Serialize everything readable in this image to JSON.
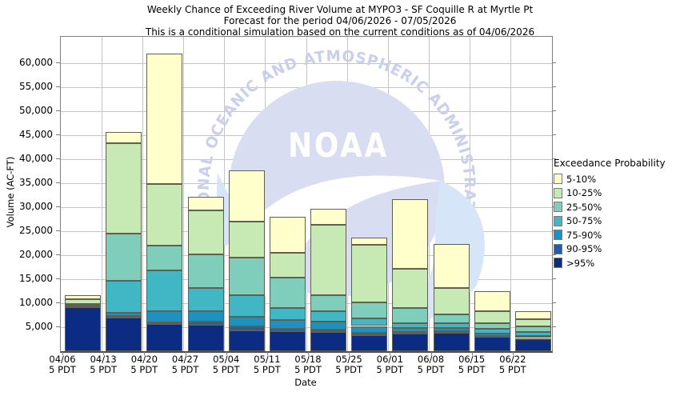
{
  "title": {
    "line1": "Weekly Chance of Exceeding River Volume at MYPO3 - SF Coquille R at Myrtle Pt",
    "line2": "Forecast for the period 04/06/2026 - 07/05/2026",
    "line3": "This is a conditional simulation based on the current conditions as of 04/06/2026"
  },
  "axes": {
    "y_label": "Volume (AC-FT)",
    "x_label": "Date",
    "y_ticks": [
      5000,
      10000,
      15000,
      20000,
      25000,
      30000,
      35000,
      40000,
      45000,
      50000,
      55000,
      60000
    ],
    "y_max": 65500,
    "x_tick_sublabel": "5 PDT"
  },
  "legend": {
    "title": "Exceedance Probability",
    "items": [
      {
        "label": "5-10%",
        "color": "#ffffcc"
      },
      {
        "label": "10-25%",
        "color": "#c7e9b4"
      },
      {
        "label": "25-50%",
        "color": "#7fcdbb"
      },
      {
        "label": "50-75%",
        "color": "#41b6c4"
      },
      {
        "label": "75-90%",
        "color": "#1d91c0"
      },
      {
        "label": "90-95%",
        "color": "#225ea8"
      },
      {
        "label": ">95%",
        "color": "#0c2c84"
      }
    ]
  },
  "watermark": {
    "arc_text": "NATIONAL OCEANIC AND ATMOSPHERIC ADMINISTRATION",
    "wordmark": "NOAA"
  },
  "chart_data": {
    "type": "bar",
    "stacked": true,
    "title": "Weekly Chance of Exceeding River Volume at MYPO3 - SF Coquille R at Myrtle Pt",
    "subtitle": "Forecast for the period 04/06/2026 - 07/05/2026",
    "note": "This is a conditional simulation based on the current conditions as of 04/06/2026",
    "xlabel": "Date",
    "ylabel": "Volume (AC-FT)",
    "ylim": [
      0,
      65500
    ],
    "grid": true,
    "legend_position": "right",
    "categories": [
      "04/06",
      "04/13",
      "04/20",
      "04/27",
      "05/04",
      "05/11",
      "05/18",
      "05/25",
      "06/01",
      "06/08",
      "06/15",
      "06/22"
    ],
    "category_sublabel": "5 PDT",
    "series": [
      {
        "name": ">95%",
        "color": "#0c2c84",
        "values": [
          9200,
          7000,
          5700,
          5450,
          4400,
          4100,
          3950,
          3400,
          3700,
          3800,
          3000,
          2600
        ]
      },
      {
        "name": "90-95%",
        "color": "#225ea8",
        "values": [
          100,
          300,
          300,
          750,
          700,
          600,
          550,
          450,
          250,
          300,
          200,
          150
        ]
      },
      {
        "name": "75-90%",
        "color": "#1d91c0",
        "values": [
          100,
          700,
          2300,
          2200,
          2100,
          1800,
          1700,
          1400,
          900,
          750,
          500,
          450
        ]
      },
      {
        "name": "50-75%",
        "color": "#41b6c4",
        "values": [
          150,
          6600,
          8500,
          4800,
          4400,
          2500,
          2100,
          1650,
          950,
          950,
          1000,
          750
        ]
      },
      {
        "name": "25-50%",
        "color": "#7fcdbb",
        "values": [
          250,
          9900,
          5200,
          7000,
          7900,
          6300,
          3300,
          3300,
          3200,
          1900,
          1100,
          1150
        ]
      },
      {
        "name": "10-25%",
        "color": "#c7e9b4",
        "values": [
          1100,
          18900,
          12900,
          9100,
          7500,
          5200,
          14800,
          12000,
          8100,
          5400,
          2600,
          1600
        ]
      },
      {
        "name": "5-10%",
        "color": "#ffffcc",
        "values": [
          700,
          2200,
          27100,
          2900,
          10700,
          7500,
          3200,
          1500,
          14500,
          9300,
          4100,
          1600
        ]
      }
    ],
    "bar_totals": [
      11600,
      45600,
      62000,
      32200,
      37700,
      28000,
      29600,
      23700,
      31600,
      22400,
      12500,
      8300
    ]
  }
}
